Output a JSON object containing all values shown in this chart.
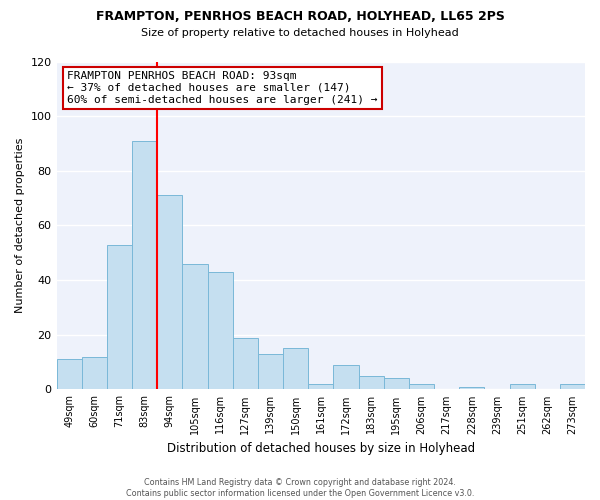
{
  "title": "FRAMPTON, PENRHOS BEACH ROAD, HOLYHEAD, LL65 2PS",
  "subtitle": "Size of property relative to detached houses in Holyhead",
  "xlabel": "Distribution of detached houses by size in Holyhead",
  "ylabel": "Number of detached properties",
  "bin_labels": [
    "49sqm",
    "60sqm",
    "71sqm",
    "83sqm",
    "94sqm",
    "105sqm",
    "116sqm",
    "127sqm",
    "139sqm",
    "150sqm",
    "161sqm",
    "172sqm",
    "183sqm",
    "195sqm",
    "206sqm",
    "217sqm",
    "228sqm",
    "239sqm",
    "251sqm",
    "262sqm",
    "273sqm"
  ],
  "bin_values": [
    11,
    12,
    53,
    91,
    71,
    46,
    43,
    19,
    13,
    15,
    2,
    9,
    5,
    4,
    2,
    0,
    1,
    0,
    2,
    0,
    2
  ],
  "bar_color": "#c5dff0",
  "bar_edge_color": "#7ab8d8",
  "property_line_x": 3.5,
  "annotation_title": "FRAMPTON PENRHOS BEACH ROAD: 93sqm",
  "annotation_line1": "← 37% of detached houses are smaller (147)",
  "annotation_line2": "60% of semi-detached houses are larger (241) →",
  "annotation_box_color": "#cc0000",
  "ylim": [
    0,
    120
  ],
  "yticks": [
    0,
    20,
    40,
    60,
    80,
    100,
    120
  ],
  "footer_line1": "Contains HM Land Registry data © Crown copyright and database right 2024.",
  "footer_line2": "Contains public sector information licensed under the Open Government Licence v3.0.",
  "background_color": "#eef2fb",
  "grid_color": "#ffffff"
}
